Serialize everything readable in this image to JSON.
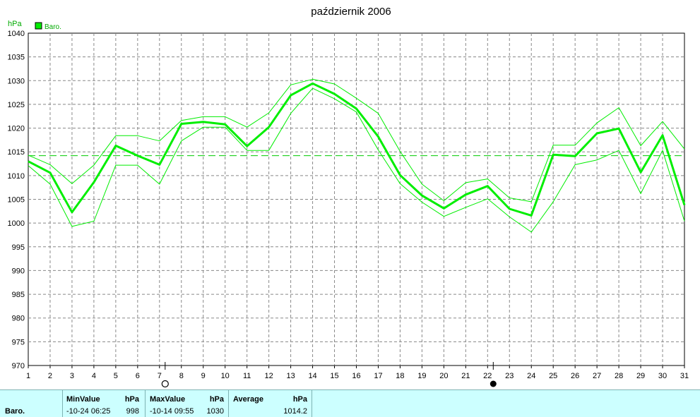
{
  "chart_data": {
    "type": "line",
    "title": "październik 2006",
    "ylabel": "hPa",
    "ylim": [
      970,
      1040
    ],
    "yticks": [
      970,
      975,
      980,
      985,
      990,
      995,
      1000,
      1005,
      1010,
      1015,
      1020,
      1025,
      1030,
      1035,
      1040
    ],
    "x": [
      1,
      2,
      3,
      4,
      5,
      6,
      7,
      8,
      9,
      10,
      11,
      12,
      13,
      14,
      15,
      16,
      17,
      18,
      19,
      20,
      21,
      22,
      23,
      24,
      25,
      26,
      27,
      28,
      29,
      30,
      31
    ],
    "series": [
      {
        "name": "Baro.",
        "color": "#00ee00",
        "values": [
          1013,
          1010.6,
          1002.3,
          1008.6,
          1016.3,
          1014.2,
          1012.3,
          1020.9,
          1021.3,
          1020.8,
          1016.2,
          1020.2,
          1026.9,
          1029.4,
          1027.2,
          1024.1,
          1018.2,
          1010.1,
          1005.8,
          1003.1,
          1006,
          1007.8,
          1003,
          1001.6,
          1014.4,
          1014.1,
          1018.9,
          1019.9,
          1010.7,
          1018.5,
          1003.8
        ]
      },
      {
        "role": "max",
        "color": "#00ee00",
        "values": [
          1014.3,
          1012.3,
          1008.3,
          1012.2,
          1018.4,
          1018.4,
          1017.3,
          1021.6,
          1022.4,
          1022.4,
          1020.2,
          1023.2,
          1029.1,
          1030.3,
          1029.3,
          1026.3,
          1023.1,
          1015.1,
          1008.2,
          1004.7,
          1008.5,
          1009.3,
          1005.3,
          1004.5,
          1016.4,
          1016.4,
          1021.1,
          1024.3,
          1016.3,
          1021.4,
          1015.6
        ]
      },
      {
        "role": "min",
        "color": "#00ee00",
        "values": [
          1012.1,
          1008.2,
          999.3,
          1000.4,
          1012.2,
          1012.2,
          1008.2,
          1017.3,
          1020.2,
          1020.2,
          1015.3,
          1015.3,
          1023.1,
          1028.4,
          1026.2,
          1023.4,
          1015.4,
          1008.3,
          1004.4,
          1001.4,
          1003.3,
          1005.1,
          1001.3,
          998.1,
          1004.5,
          1012.3,
          1013.3,
          1015.3,
          1006.2,
          1015.3,
          1000.4
        ]
      }
    ],
    "average": 1014.2,
    "moon_phases": [
      {
        "day": 7,
        "phase": "full"
      },
      {
        "day": 22,
        "phase": "new"
      }
    ],
    "grid": true,
    "legend": "top-left"
  },
  "stats": {
    "row_label": "Baro.",
    "min_header": "MinValue",
    "min_unit": "hPa",
    "min_time": "-10-24  06:25",
    "min_value": "998",
    "max_header": "MaxValue",
    "max_unit": "hPa",
    "max_time": "-10-14  09:55",
    "max_value": "1030",
    "avg_header": "Average",
    "avg_unit": "hPa",
    "avg_value": "1014.2"
  }
}
